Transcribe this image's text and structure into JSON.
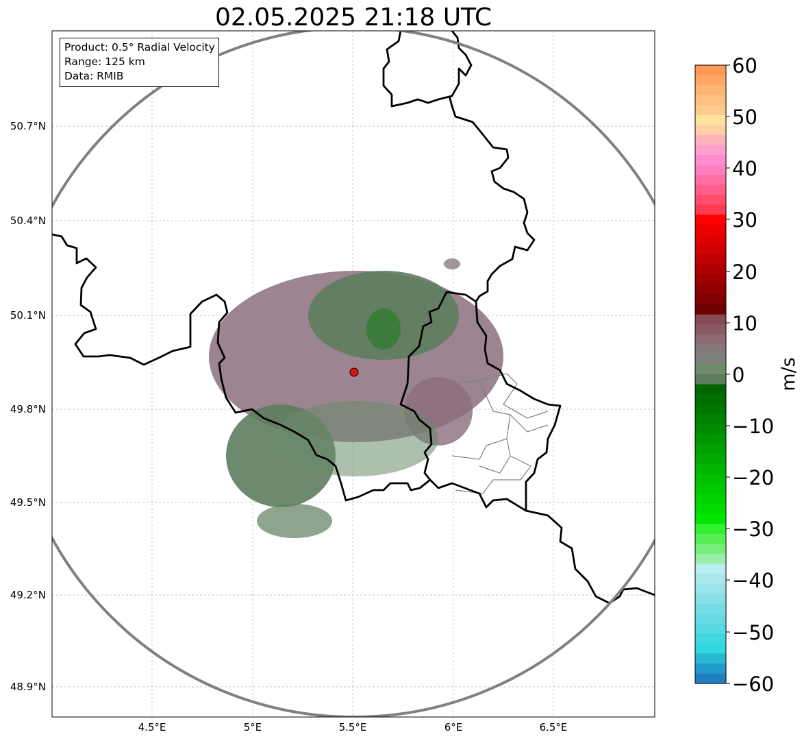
{
  "title": "02.05.2025 21:18 UTC",
  "info": {
    "product": "Product: 0.5° Radial Velocity",
    "range": "Range: 125 km",
    "source": "Data: RMIB"
  },
  "lon_ticks": [
    "4.5°E",
    "5°E",
    "5.5°E",
    "6°E",
    "6.5°E"
  ],
  "lat_ticks": [
    "50.7°N",
    "50.4°N",
    "50.1°N",
    "49.8°N",
    "49.5°N",
    "49.2°N",
    "48.9°N"
  ],
  "colorbar": {
    "unit": "m/s",
    "ticks": [
      "60",
      "50",
      "40",
      "30",
      "20",
      "10",
      "0",
      "−10",
      "−20",
      "−30",
      "−40",
      "−50",
      "−60"
    ],
    "vmin": -60,
    "vmax": 60
  },
  "radar_site": {
    "lon": 5.505,
    "lat": 49.914
  },
  "colors": {
    "range_ring": "#808080",
    "borders": "#000000",
    "province_borders": "#808080",
    "site_marker": "#e01010"
  }
}
